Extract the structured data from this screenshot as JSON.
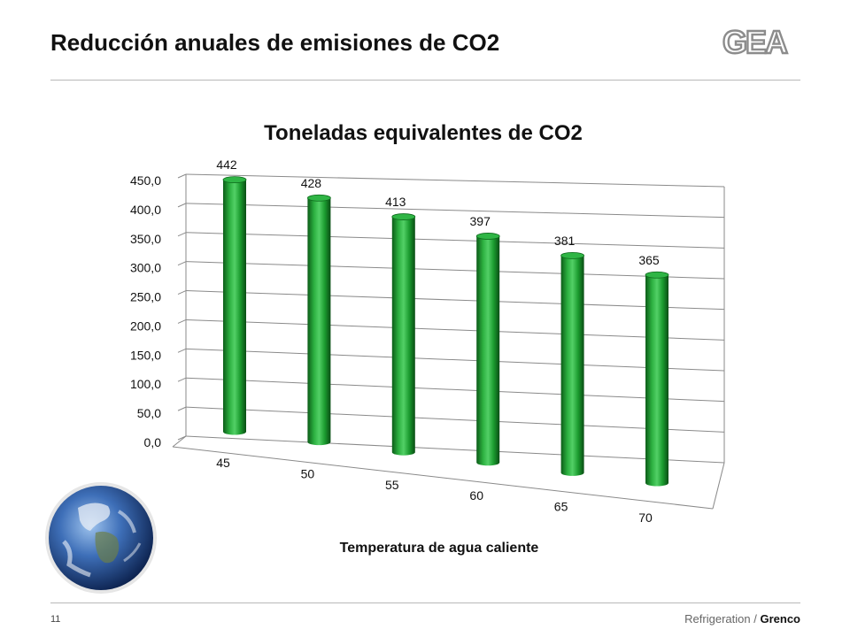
{
  "slide": {
    "title": "Reducción anuales de emisiones de CO2",
    "page_number": "11",
    "footer_division": "Refrigeration",
    "footer_separator": "/",
    "footer_brand": "Grenco",
    "logo_text": "GEA"
  },
  "colors": {
    "bar_green": "#1a9a2e",
    "bar_dark": "#0c5c18",
    "bar_light": "#52d066",
    "grid": "#8a8a8a"
  },
  "chart_data": {
    "type": "bar",
    "title": "Toneladas equivalentes de CO2",
    "xlabel": "Temperatura de agua caliente",
    "ylabel": "",
    "categories": [
      "45",
      "50",
      "55",
      "60",
      "65",
      "70"
    ],
    "values": [
      442,
      428,
      413,
      397,
      381,
      365
    ],
    "data_labels": [
      "442",
      "428",
      "413",
      "397",
      "381",
      "365"
    ],
    "ylim": [
      0,
      450
    ],
    "y_ticks": [
      "0,0",
      "50,0",
      "100,0",
      "150,0",
      "200,0",
      "250,0",
      "300,0",
      "350,0",
      "400,0",
      "450,0"
    ],
    "shape": "3d-cylinder",
    "grid": true,
    "legend": "none"
  }
}
